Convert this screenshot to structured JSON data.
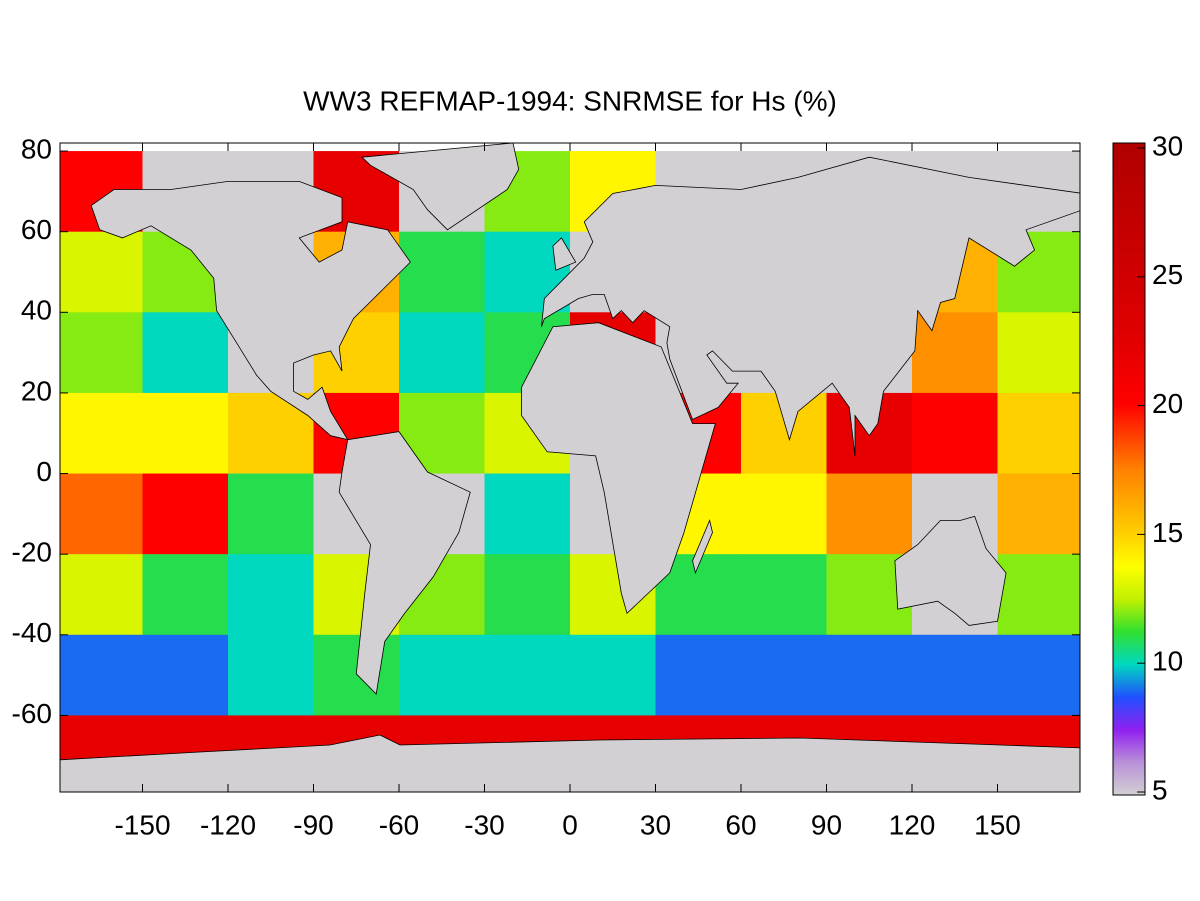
{
  "chart_data": {
    "type": "heatmap",
    "title": "WW3 REFMAP-1994: SNRMSE for Hs (%)",
    "x": [
      -165,
      -135,
      -105,
      -75,
      -45,
      -15,
      15,
      45,
      75,
      105,
      135,
      165
    ],
    "y": [
      70,
      50,
      30,
      10,
      -10,
      -30,
      -50,
      -70
    ],
    "values": [
      [
        20,
        null,
        null,
        22,
        null,
        12,
        14,
        null,
        null,
        null,
        null,
        null
      ],
      [
        13,
        12,
        null,
        16,
        11,
        10,
        null,
        null,
        null,
        null,
        16,
        12
      ],
      [
        12,
        10,
        null,
        15,
        10,
        11,
        22,
        null,
        null,
        null,
        17,
        13
      ],
      [
        14,
        14,
        15,
        20,
        12,
        13,
        null,
        20,
        15,
        22,
        20,
        15
      ],
      [
        18,
        20,
        11,
        null,
        null,
        10,
        null,
        14,
        14,
        17,
        null,
        16
      ],
      [
        13,
        11,
        10,
        13,
        12,
        11,
        13,
        11,
        11,
        12,
        null,
        12
      ],
      [
        9,
        9,
        10,
        11,
        10,
        10,
        10,
        9,
        9,
        9,
        9,
        9
      ],
      [
        22,
        22,
        22,
        22,
        22,
        22,
        22,
        22,
        22,
        22,
        22,
        22
      ]
    ],
    "xlim": [
      -180,
      180
    ],
    "ylim": [
      -79,
      82
    ],
    "xticks": [
      -150,
      -120,
      -90,
      -60,
      -30,
      0,
      30,
      60,
      90,
      120,
      150
    ],
    "yticks": [
      80,
      60,
      40,
      20,
      0,
      -20,
      -40,
      -60
    ],
    "clim": [
      5,
      30
    ],
    "cticks": [
      5,
      10,
      15,
      20,
      25,
      30
    ],
    "colorscale": [
      "#d3d0d3",
      "#b890d8",
      "#9020f0",
      "#2050ff",
      "#00d8c0",
      "#30e030",
      "#c0f000",
      "#ffff00",
      "#ffd000",
      "#ffa800",
      "#ff8000",
      "#ff4000",
      "#ff0000",
      "#f00000",
      "#e00000",
      "#d80000",
      "#d00000",
      "#c80000",
      "#c00000",
      "#b80000",
      "#b00000"
    ],
    "land_color": "#d3d0d3"
  }
}
